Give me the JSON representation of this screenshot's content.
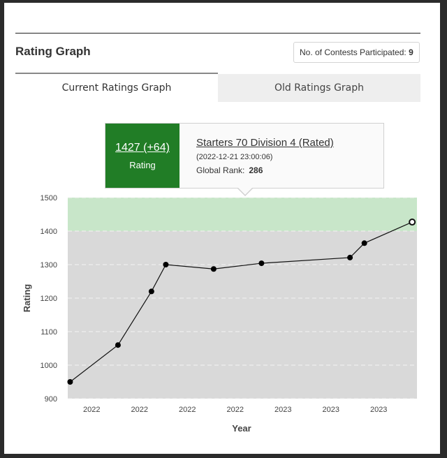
{
  "header": {
    "title": "Rating Graph",
    "contests_label": "No. of Contests Participated:",
    "contests_count": "9"
  },
  "tabs": [
    {
      "label": "Current Ratings Graph",
      "active": true
    },
    {
      "label": "Old Ratings Graph",
      "active": false
    }
  ],
  "tooltip": {
    "rating": "1427 (+64)",
    "rating_label": "Rating",
    "contest_name": "Starters 70 Division 4 (Rated)",
    "date": "(2022-12-21 23:00:06)",
    "rank_label": "Global Rank:",
    "rank_value": "286"
  },
  "colors": {
    "accent_green": "#217d26",
    "band_green": "#c8e6c9",
    "plot_gray": "#d9d9d9"
  },
  "chart_data": {
    "type": "line",
    "xlabel": "Year",
    "ylabel": "Rating",
    "ylim": [
      900,
      1500
    ],
    "yticks": [
      900,
      1000,
      1100,
      1200,
      1300,
      1400,
      1500
    ],
    "xticks": [
      "2022",
      "2022",
      "2022",
      "2022",
      "2023",
      "2023",
      "2023"
    ],
    "xtick_positions": [
      0.5,
      1.5,
      2.5,
      3.5,
      4.5,
      5.5,
      6.5
    ],
    "xlim": [
      0,
      7.3
    ],
    "bands": [
      {
        "from": 1400,
        "to": 1500,
        "color": "#c8e6c9"
      },
      {
        "from": 900,
        "to": 1400,
        "color": "#d9d9d9"
      }
    ],
    "points": [
      {
        "x": 0.05,
        "y": 950
      },
      {
        "x": 1.05,
        "y": 1060
      },
      {
        "x": 1.75,
        "y": 1220
      },
      {
        "x": 2.05,
        "y": 1300
      },
      {
        "x": 3.05,
        "y": 1287
      },
      {
        "x": 4.05,
        "y": 1304
      },
      {
        "x": 5.9,
        "y": 1321
      },
      {
        "x": 6.2,
        "y": 1364
      },
      {
        "x": 7.2,
        "y": 1427
      }
    ],
    "highlighted_point_index": 8,
    "grid": true
  }
}
